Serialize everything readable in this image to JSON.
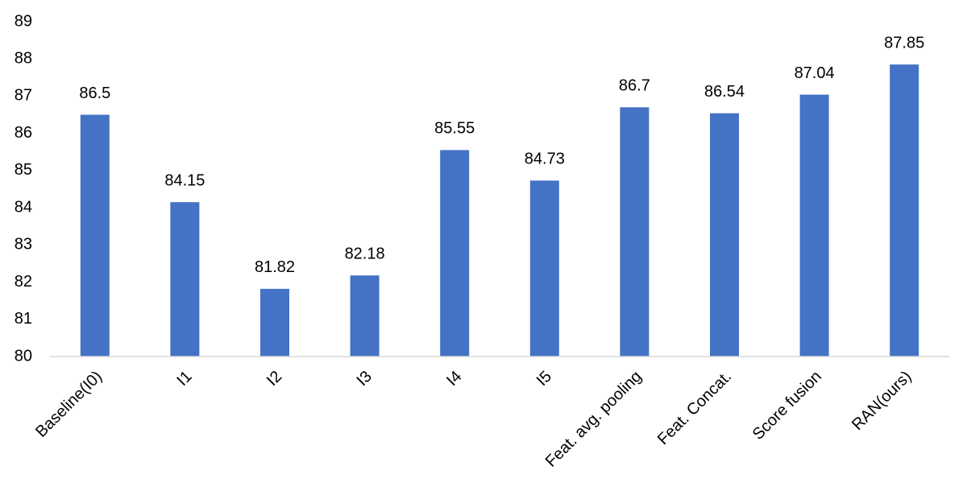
{
  "chart_data": {
    "type": "bar",
    "categories": [
      "Baseline(I0)",
      "I1",
      "I2",
      "I3",
      "I4",
      "I5",
      "Feat. avg. pooling",
      "Feat. Concat.",
      "Score fusion",
      "RAN(ours)"
    ],
    "values": [
      86.5,
      84.15,
      81.82,
      82.18,
      85.55,
      84.73,
      86.7,
      86.54,
      87.04,
      87.85
    ],
    "color": "#4472c4",
    "ylim": [
      80,
      89
    ],
    "yticks": [
      80,
      81,
      82,
      83,
      84,
      85,
      86,
      87,
      88,
      89
    ],
    "grid": false
  }
}
